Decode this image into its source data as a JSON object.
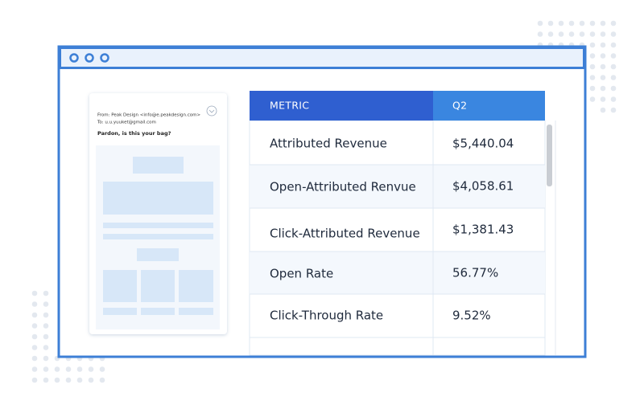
{
  "email": {
    "from": "From: Peak Design <info@e.peakdesign.com>",
    "to": "To: u.u.yuuket@gmail.com",
    "subject": "Pardon, is this your bag?"
  },
  "table": {
    "header": [
      "METRIC",
      "Q2"
    ],
    "rows": [
      [
        "Attributed Revenue",
        "$5,440.04"
      ],
      [
        "Open-Attributed Renvue",
        "$4,058.61"
      ],
      [
        "Click-Attributed Revenue",
        "$1,381.43"
      ],
      [
        "Open Rate",
        "56.77%"
      ],
      [
        "Click-Through Rate",
        "9.52%"
      ]
    ]
  }
}
